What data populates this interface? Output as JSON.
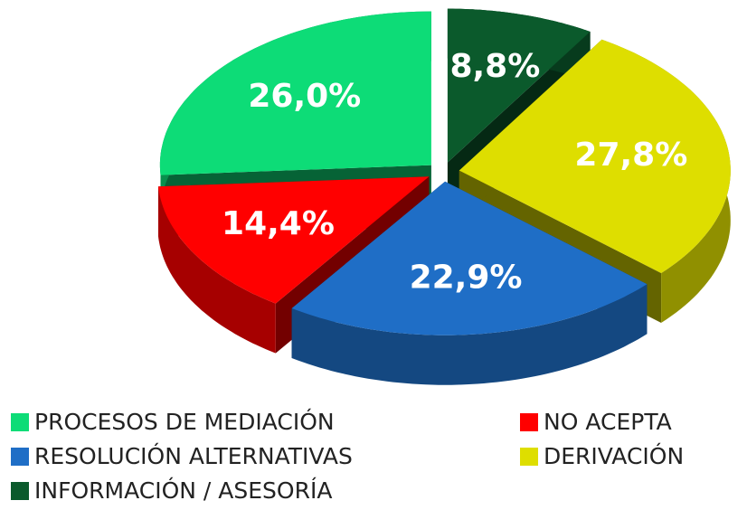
{
  "chart_data": {
    "type": "pie",
    "categories": [
      "PROCESOS DE MEDIACIÓN",
      "NO ACEPTA",
      "RESOLUCIÓN ALTERNATIVAS",
      "DERIVACIÓN",
      "INFORMACIÓN / ASESORÍA"
    ],
    "values": [
      26.0,
      14.4,
      22.9,
      27.8,
      8.8
    ],
    "value_labels": [
      "26,0%",
      "14,4%",
      "22,9%",
      "27,8%",
      "8,8%"
    ],
    "colors": [
      "#0ddc77",
      "#ff0000",
      "#1f6ec6",
      "#dede00",
      "#0b5a2c"
    ]
  }
}
